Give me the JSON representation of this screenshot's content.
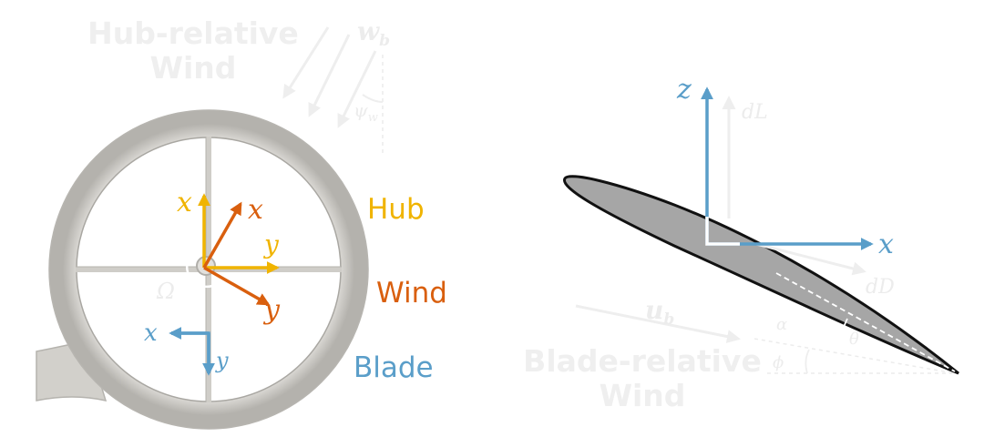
{
  "colors": {
    "hub": "#f0b400",
    "wind": "#d95f0e",
    "blade": "#5a9ec9",
    "faded": "#efefef",
    "airfoil_fill": "#a6a6a6",
    "airfoil_edge": "#111111",
    "ring": "#d4d2cd"
  },
  "left_panel": {
    "faded_title_line1": "Hub-relative",
    "faded_title_line2": "Wind",
    "wb_label": "w",
    "wb_sub": "b",
    "psi_label": "ψ",
    "psi_sub": "w",
    "omega_label": "Ω",
    "hub_x": "x",
    "hub_y": "y",
    "wind_x": "x",
    "wind_y": "y",
    "blade_x": "x",
    "blade_y": "y",
    "legend": {
      "hub": "Hub",
      "wind": "Wind",
      "blade": "Blade"
    }
  },
  "right_panel": {
    "z_label": "z",
    "x_label": "x",
    "dL_label": "dL",
    "dD_label": "dD",
    "ub_label": "u",
    "ub_sub": "b",
    "alpha_label": "α",
    "theta_label": "θ",
    "phi_label": "ϕ",
    "faded_title_line1": "Blade-relative",
    "faded_title_line2": "Wind"
  }
}
